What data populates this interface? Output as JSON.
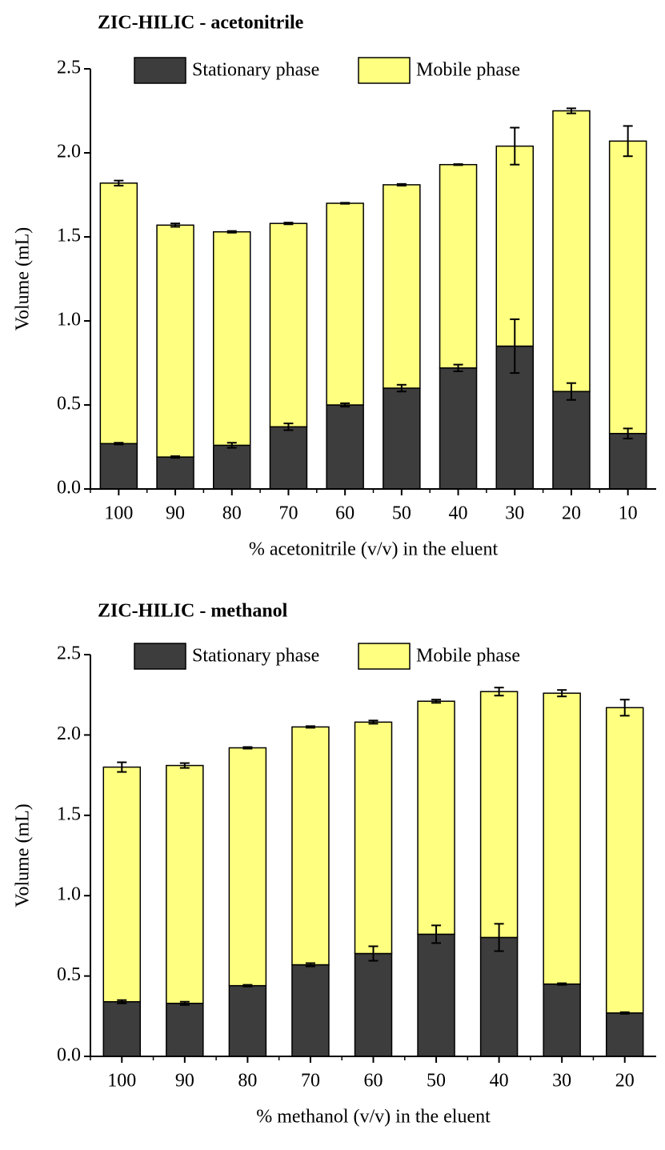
{
  "chart_data": [
    {
      "type": "bar",
      "stacked": true,
      "title": "ZIC-HILIC - acetonitrile",
      "xlabel": "% acetonitrile (v/v) in the eluent",
      "ylabel": "Volume (mL)",
      "categories": [
        "100",
        "90",
        "80",
        "70",
        "60",
        "50",
        "40",
        "30",
        "20",
        "10"
      ],
      "series": [
        {
          "name": "Stationary phase",
          "color": "#3d3d3d",
          "values": [
            0.27,
            0.19,
            0.26,
            0.37,
            0.5,
            0.6,
            0.72,
            0.85,
            0.58,
            0.33
          ],
          "errors": [
            0.005,
            0.005,
            0.015,
            0.02,
            0.01,
            0.02,
            0.02,
            0.16,
            0.05,
            0.03
          ]
        },
        {
          "name": "Mobile phase",
          "color": "#ffff80",
          "values": [
            1.55,
            1.38,
            1.27,
            1.21,
            1.2,
            1.21,
            1.21,
            1.19,
            1.67,
            1.74
          ],
          "errors": [
            0.015,
            0.01,
            0.005,
            0.005,
            0.003,
            0.005,
            0.003,
            0.11,
            0.015,
            0.09
          ]
        }
      ],
      "ylim": [
        0,
        2.5
      ],
      "yticks": [
        {
          "value": 0,
          "label": "0.0"
        },
        0.5,
        {
          "value": 1,
          "label": "1.0"
        },
        1.5,
        {
          "value": 2,
          "label": "2.0"
        },
        2.5
      ],
      "legend": "top"
    },
    {
      "type": "bar",
      "stacked": true,
      "title": "ZIC-HILIC - methanol",
      "xlabel": "% methanol (v/v) in the eluent",
      "ylabel": "Volume (mL)",
      "categories": [
        "100",
        "90",
        "80",
        "70",
        "60",
        "50",
        "40",
        "30",
        "20"
      ],
      "series": [
        {
          "name": "Stationary phase",
          "color": "#3d3d3d",
          "values": [
            0.34,
            0.33,
            0.44,
            0.57,
            0.64,
            0.76,
            0.74,
            0.45,
            0.27
          ],
          "errors": [
            0.01,
            0.01,
            0.005,
            0.01,
            0.045,
            0.055,
            0.085,
            0.005,
            0.005
          ]
        },
        {
          "name": "Mobile phase",
          "color": "#ffff80",
          "values": [
            1.46,
            1.48,
            1.48,
            1.48,
            1.44,
            1.45,
            1.53,
            1.81,
            1.9
          ],
          "errors": [
            0.03,
            0.015,
            0.005,
            0.005,
            0.01,
            0.01,
            0.025,
            0.02,
            0.05
          ]
        }
      ],
      "ylim": [
        0,
        2.5
      ],
      "yticks": [
        {
          "value": 0,
          "label": "0.0"
        },
        0.5,
        {
          "value": 1,
          "label": "1.0"
        },
        1.5,
        {
          "value": 2,
          "label": "2.0"
        },
        2.5
      ],
      "legend": "top"
    }
  ]
}
